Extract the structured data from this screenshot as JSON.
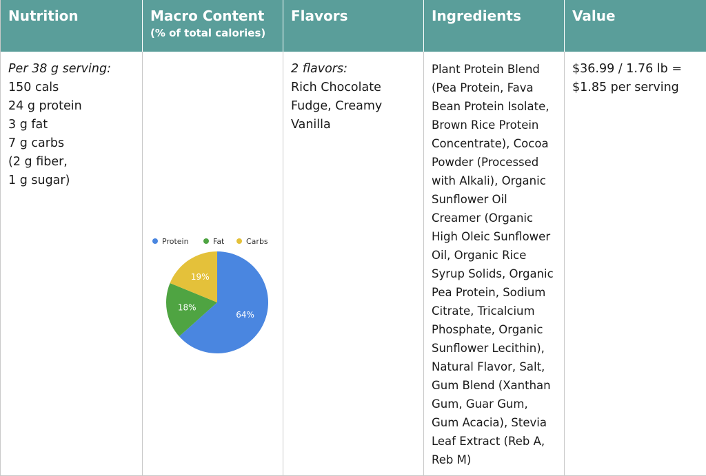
{
  "headers": {
    "nutrition": "Nutrition",
    "macro": "Macro Content",
    "macro_sub": "(% of total calories)",
    "flavors": "Flavors",
    "ingredients": "Ingredients",
    "value": "Value"
  },
  "nutrition": {
    "intro": "Per 38 g serving:",
    "lines": [
      "150 cals",
      "24 g protein",
      "3 g fat",
      "7 g carbs",
      "(2 g fiber,",
      "1 g sugar)"
    ]
  },
  "flavors": {
    "intro": "2 flavors:",
    "lines": [
      "Rich Chocolate",
      "Fudge, Creamy",
      "Vanilla"
    ]
  },
  "ingredients": {
    "lines": [
      "Plant Protein Blend",
      "(Pea Protein, Fava",
      "Bean Protein Isolate,",
      "Brown Rice Protein",
      "Concentrate), Cocoa",
      "Powder (Processed",
      "with Alkali), Organic",
      "Sunflower Oil",
      "Creamer (Organic",
      "High Oleic Sunflower",
      "Oil, Organic Rice",
      "Syrup Solids, Organic",
      "Pea Protein, Sodium",
      "Citrate, Tricalcium",
      "Phosphate, Organic",
      "Sunflower Lecithin),",
      "Natural Flavor, Salt,",
      "Gum Blend (Xanthan",
      "Gum, Guar Gum,",
      "Gum Acacia), Stevia",
      "Leaf Extract (Reb A,",
      "Reb M)"
    ]
  },
  "value": {
    "lines": [
      "$36.99 / 1.76 lb =",
      "$1.85 per serving"
    ]
  },
  "colors": {
    "header_bg": "#5a9e9a",
    "protein": "#4a86e0",
    "fat": "#4fa442",
    "carbs": "#e4c13a"
  },
  "chart_data": {
    "type": "pie",
    "title": "",
    "legend_position": "top",
    "slices": [
      {
        "name": "Protein",
        "value": 64,
        "label": "64%",
        "color": "#4a86e0"
      },
      {
        "name": "Fat",
        "value": 18,
        "label": "18%",
        "color": "#4fa442"
      },
      {
        "name": "Carbs",
        "value": 19,
        "label": "19%",
        "color": "#e4c13a"
      }
    ]
  }
}
